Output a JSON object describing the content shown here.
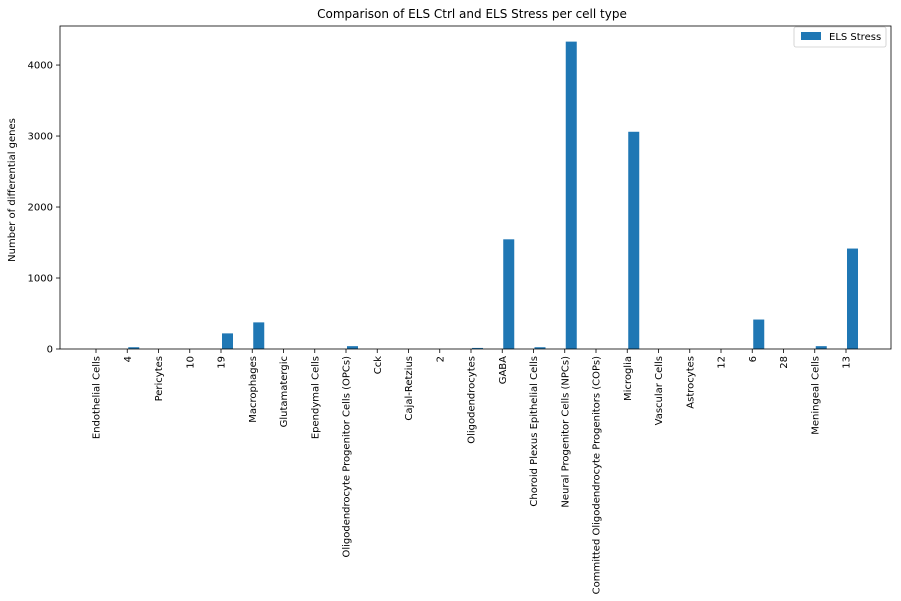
{
  "chart_data": {
    "type": "bar",
    "title": "Comparison of ELS Ctrl and ELS Stress per cell type",
    "xlabel": "",
    "ylabel": "Number of differential genes",
    "ylim": [
      0,
      4550
    ],
    "yticks": [
      0,
      1000,
      2000,
      3000,
      4000
    ],
    "grid": false,
    "legend_position": "top-right",
    "categories": [
      "Endothelial Cells",
      "4",
      "Pericytes",
      "10",
      "19",
      "Macrophages",
      "Glutamatergic",
      "Ependymal Cells",
      "Oligodendrocyte Progenitor Cells (OPCs)",
      "Cck",
      "Cajal-Retzius",
      "2",
      "Oligodendrocytes",
      "GABA",
      "Choroid Plexus Epithelial Cells",
      "Neural Progenitor Cells (NPCs)",
      "Committed Oligodendrocyte Progenitors (COPs)",
      "Microglia",
      "Vascular Cells",
      "Astrocytes",
      "12",
      "6",
      "28",
      "Meningeal Cells",
      "13"
    ],
    "series": [
      {
        "name": "ELS Stress",
        "color": "#1f77b4",
        "values": [
          0,
          25,
          0,
          0,
          220,
          375,
          0,
          0,
          40,
          0,
          0,
          0,
          15,
          1545,
          25,
          4330,
          0,
          3060,
          0,
          0,
          0,
          415,
          0,
          40,
          1415
        ]
      }
    ]
  }
}
